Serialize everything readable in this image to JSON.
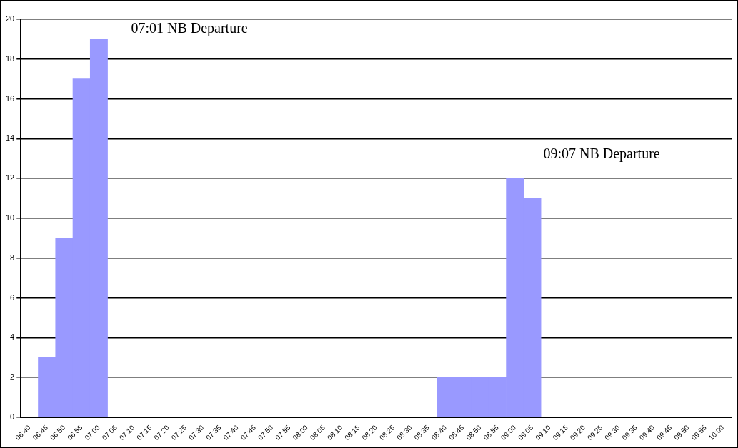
{
  "chart_data": {
    "type": "bar",
    "categories": [
      "06:40",
      "06:45",
      "06:50",
      "06:55",
      "07:00",
      "07:05",
      "07:10",
      "07:15",
      "07:20",
      "07:25",
      "07:30",
      "07:35",
      "07:40",
      "07:45",
      "07:50",
      "07:55",
      "08:00",
      "08:05",
      "08:10",
      "08:15",
      "08:20",
      "08:25",
      "08:30",
      "08:35",
      "08:40",
      "08:45",
      "08:50",
      "08:55",
      "09:00",
      "09:05",
      "09:10",
      "09:15",
      "09:20",
      "09:25",
      "09:30",
      "09:35",
      "09:40",
      "09:45",
      "09:50",
      "09:55",
      "10:00"
    ],
    "values": [
      null,
      3,
      9,
      17,
      19,
      null,
      null,
      null,
      null,
      null,
      null,
      null,
      null,
      null,
      null,
      null,
      null,
      null,
      null,
      null,
      null,
      null,
      null,
      null,
      2,
      2,
      2,
      2,
      12,
      11,
      null,
      null,
      null,
      null,
      null,
      null,
      null,
      null,
      null,
      null,
      null
    ],
    "color": "#9999ff",
    "ylim": [
      0,
      20
    ],
    "yticks": [
      0,
      2,
      4,
      6,
      8,
      10,
      12,
      14,
      16,
      18,
      20
    ],
    "grid": "y",
    "legend": false,
    "annotations": [
      "07:01 NB Departure",
      "09:07 NB Departure"
    ]
  }
}
